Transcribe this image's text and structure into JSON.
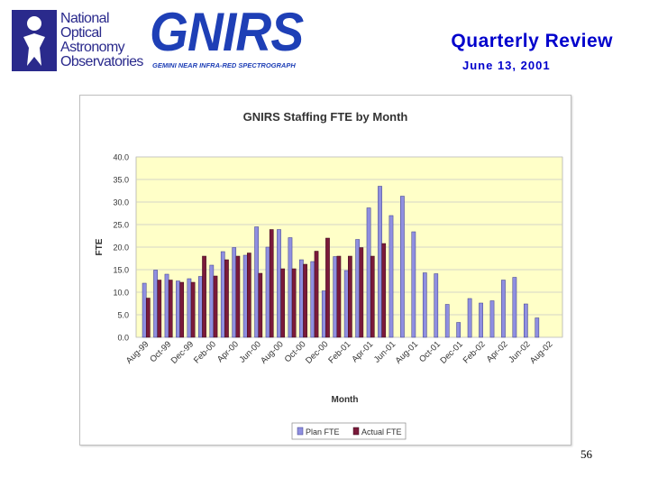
{
  "header": {
    "noao_lines": [
      "National",
      "Optical",
      "Astronomy",
      "Observatories"
    ],
    "gnirs_logo_text": "GNIRS",
    "gnirs_logo_subtitle": "GEMINI NEAR INFRA-RED SPECTROGRAPH",
    "title": "Quarterly Review",
    "subtitle": "June 13, 2001"
  },
  "page_number": "56",
  "colors": {
    "plan": "#8f8fe0",
    "actual": "#7a1a3a",
    "plot_bg": "#ffffc8",
    "title": "#0000cc",
    "logo": "#1e3fb6"
  },
  "chart_data": {
    "type": "bar",
    "title": "GNIRS Staffing FTE by Month",
    "xlabel": "Month",
    "ylabel": "FTE",
    "ylim": [
      0,
      40
    ],
    "yticks": [
      "0.0",
      "5.0",
      "10.0",
      "15.0",
      "20.0",
      "25.0",
      "30.0",
      "35.0",
      "40.0"
    ],
    "grid": true,
    "legend_position": "bottom",
    "categories": [
      "Aug-99",
      "Sep-99",
      "Oct-99",
      "Nov-99",
      "Dec-99",
      "Jan-00",
      "Feb-00",
      "Mar-00",
      "Apr-00",
      "May-00",
      "Jun-00",
      "Jul-00",
      "Aug-00",
      "Sep-00",
      "Oct-00",
      "Nov-00",
      "Dec-00",
      "Jan-01",
      "Feb-01",
      "Mar-01",
      "Apr-01",
      "May-01",
      "Jun-01",
      "Jul-01",
      "Aug-01",
      "Sep-01",
      "Oct-01",
      "Nov-01",
      "Dec-01",
      "Jan-02",
      "Feb-02",
      "Mar-02",
      "Apr-02",
      "May-02",
      "Jun-02",
      "Jul-02",
      "Aug-02"
    ],
    "tick_labels": [
      "Aug-99",
      "Oct-99",
      "Dec-99",
      "Feb-00",
      "Apr-00",
      "Jun-00",
      "Aug-00",
      "Oct-00",
      "Dec-00",
      "Feb-01",
      "Apr-01",
      "Jun-01",
      "Aug-01",
      "Oct-01",
      "Dec-01",
      "Feb-02",
      "Apr-02",
      "Jun-02",
      "Aug-02"
    ],
    "series": [
      {
        "name": "Plan FTE",
        "values": [
          12.0,
          14.9,
          14.0,
          12.5,
          13.0,
          13.5,
          16.0,
          19.0,
          19.9,
          18.2,
          24.5,
          20.0,
          23.9,
          22.1,
          17.2,
          16.8,
          10.3,
          17.9,
          14.8,
          21.7,
          28.7,
          33.5,
          27.0,
          31.3,
          23.4,
          14.3,
          14.1,
          7.3,
          3.3,
          8.6,
          7.6,
          8.1,
          12.7,
          13.3,
          7.4,
          4.3,
          null
        ]
      },
      {
        "name": "Actual FTE",
        "values": [
          8.7,
          12.7,
          12.7,
          12.2,
          12.2,
          18.0,
          13.6,
          17.2,
          18.0,
          18.7,
          14.2,
          23.9,
          15.2,
          15.2,
          16.2,
          19.1,
          22.0,
          18.0,
          18.0,
          19.9,
          18.0,
          20.8,
          null,
          null,
          null,
          null,
          null,
          null,
          null,
          null,
          null,
          null,
          null,
          null,
          null,
          null,
          null
        ]
      }
    ]
  }
}
